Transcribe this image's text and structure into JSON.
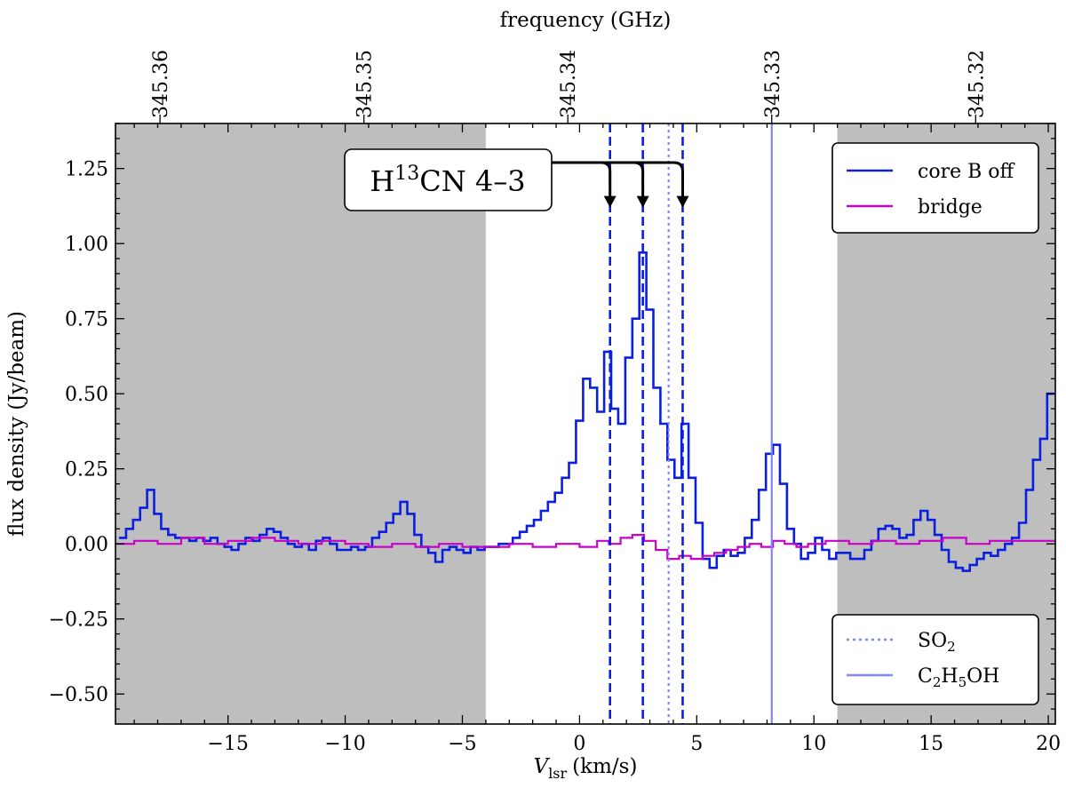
{
  "chart_data": {
    "type": "line",
    "step": true,
    "title": "",
    "xlabel": {
      "symbol": "V",
      "subscript": "lsr",
      "units": "(km/s)"
    },
    "ylabel": "flux density (Jy/beam)",
    "top_xlabel": "frequency (GHz)",
    "xlim": [
      -19.8,
      20.3
    ],
    "ylim": [
      -0.6,
      1.4
    ],
    "x_ticks": [
      -15,
      -10,
      -5,
      0,
      5,
      10,
      15,
      20
    ],
    "x_tick_labels": [
      "−15",
      "−10",
      "−5",
      "0",
      "5",
      "10",
      "15",
      "20"
    ],
    "y_ticks": [
      -0.5,
      -0.25,
      0.0,
      0.25,
      0.5,
      0.75,
      1.0,
      1.25
    ],
    "y_tick_labels": [
      "−0.50",
      "−0.25",
      "0.00",
      "0.25",
      "0.50",
      "0.75",
      "1.00",
      "1.25"
    ],
    "top_ticks": [
      {
        "label": "345.36",
        "v": -17.9
      },
      {
        "label": "345.35",
        "v": -9.2
      },
      {
        "label": "345.34",
        "v": -0.5
      },
      {
        "label": "345.33",
        "v": 8.2
      },
      {
        "label": "345.32",
        "v": 16.9
      }
    ],
    "shaded_regions": [
      [
        -19.8,
        -4.0
      ],
      [
        11.0,
        20.3
      ]
    ],
    "series": [
      {
        "name": "core B off",
        "color": "#0b1fe0",
        "x": [
          -19.5,
          -19.2,
          -18.9,
          -18.6,
          -18.3,
          -18.0,
          -17.7,
          -17.4,
          -17.1,
          -16.8,
          -16.5,
          -16.2,
          -15.9,
          -15.6,
          -15.3,
          -15.0,
          -14.7,
          -14.4,
          -14.1,
          -13.8,
          -13.5,
          -13.2,
          -12.9,
          -12.6,
          -12.3,
          -12.0,
          -11.7,
          -11.4,
          -11.1,
          -10.8,
          -10.5,
          -10.2,
          -9.9,
          -9.6,
          -9.3,
          -9.0,
          -8.7,
          -8.4,
          -8.1,
          -7.8,
          -7.5,
          -7.2,
          -6.9,
          -6.6,
          -6.3,
          -6.0,
          -5.7,
          -5.4,
          -5.1,
          -4.8,
          -4.5,
          -4.2,
          -3.9,
          -3.6,
          -3.3,
          -3.0,
          -2.7,
          -2.4,
          -2.1,
          -1.8,
          -1.5,
          -1.2,
          -0.9,
          -0.6,
          -0.3,
          0.0,
          0.3,
          0.6,
          0.9,
          1.2,
          1.5,
          1.8,
          2.1,
          2.4,
          2.7,
          3.0,
          3.3,
          3.6,
          3.9,
          4.2,
          4.5,
          4.8,
          5.1,
          5.4,
          5.7,
          6.0,
          6.3,
          6.6,
          6.9,
          7.2,
          7.5,
          7.8,
          8.1,
          8.4,
          8.7,
          9.0,
          9.3,
          9.6,
          9.9,
          10.2,
          10.5,
          10.8,
          11.1,
          11.4,
          11.7,
          12.0,
          12.3,
          12.6,
          12.9,
          13.2,
          13.5,
          13.8,
          14.1,
          14.4,
          14.7,
          15.0,
          15.3,
          15.6,
          15.9,
          16.2,
          16.5,
          16.8,
          17.1,
          17.4,
          17.7,
          18.0,
          18.3,
          18.6,
          18.9,
          19.2,
          19.5,
          19.8,
          20.1
        ],
        "values": [
          0.02,
          0.05,
          0.08,
          0.12,
          0.18,
          0.1,
          0.05,
          0.03,
          0.02,
          0.02,
          0.01,
          0.02,
          0.01,
          0.02,
          0.0,
          -0.01,
          -0.02,
          0.0,
          0.02,
          0.01,
          0.03,
          0.05,
          0.04,
          0.02,
          0.0,
          -0.01,
          0.0,
          -0.02,
          0.01,
          0.02,
          0.0,
          -0.02,
          -0.02,
          -0.01,
          -0.02,
          -0.01,
          0.02,
          0.04,
          0.07,
          0.1,
          0.14,
          0.1,
          0.03,
          -0.01,
          -0.03,
          -0.06,
          -0.02,
          -0.01,
          -0.02,
          -0.03,
          -0.01,
          -0.02,
          -0.01,
          -0.01,
          0.0,
          0.0,
          0.02,
          0.04,
          0.06,
          0.08,
          0.11,
          0.14,
          0.17,
          0.22,
          0.27,
          0.41,
          0.55,
          0.52,
          0.44,
          0.64,
          0.45,
          0.4,
          0.62,
          0.75,
          0.97,
          0.78,
          0.52,
          0.4,
          0.28,
          0.22,
          0.4,
          0.22,
          0.07,
          -0.05,
          -0.08,
          -0.04,
          -0.02,
          -0.04,
          -0.03,
          0.02,
          0.08,
          0.18,
          0.3,
          0.33,
          0.2,
          0.05,
          0.0,
          -0.05,
          -0.03,
          0.02,
          -0.02,
          -0.05,
          -0.03,
          -0.03,
          -0.05,
          -0.05,
          -0.02,
          0.01,
          0.05,
          0.06,
          0.05,
          0.02,
          0.03,
          0.08,
          0.11,
          0.08,
          0.03,
          -0.02,
          -0.06,
          -0.08,
          -0.09,
          -0.07,
          -0.05,
          -0.03,
          -0.04,
          -0.02,
          0.0,
          0.02,
          0.07,
          0.18,
          0.28,
          0.35,
          0.5
        ]
      },
      {
        "name": "bridge",
        "color": "#c800c8",
        "x": [
          -19.5,
          -18.5,
          -17.5,
          -16.5,
          -15.5,
          -14.5,
          -13.5,
          -12.5,
          -11.5,
          -10.5,
          -9.5,
          -8.5,
          -7.5,
          -6.5,
          -5.5,
          -4.5,
          -3.5,
          -2.5,
          -1.5,
          -0.5,
          0.5,
          1.0,
          1.5,
          2.0,
          2.5,
          3.0,
          3.5,
          4.0,
          4.5,
          5.0,
          5.5,
          6.0,
          6.5,
          7.0,
          7.5,
          8.0,
          8.5,
          9.0,
          9.5,
          10.0,
          11.0,
          12.0,
          13.0,
          14.0,
          15.0,
          16.0,
          17.0,
          18.0,
          19.0,
          20.1
        ],
        "values": [
          0.0,
          0.01,
          0.0,
          0.02,
          0.0,
          0.01,
          0.02,
          0.01,
          0.0,
          0.01,
          0.0,
          -0.01,
          0.0,
          -0.01,
          0.0,
          -0.01,
          -0.01,
          0.0,
          -0.01,
          0.0,
          -0.01,
          0.01,
          0.0,
          0.02,
          0.03,
          0.01,
          -0.02,
          -0.05,
          -0.04,
          -0.05,
          -0.04,
          -0.03,
          -0.02,
          -0.01,
          0.0,
          -0.01,
          0.01,
          0.0,
          -0.01,
          0.0,
          0.01,
          0.0,
          0.01,
          0.0,
          0.01,
          0.02,
          0.0,
          0.01,
          0.01,
          0.01
        ]
      }
    ],
    "vertical_lines": [
      {
        "name": "H13CN 4-3 hf 1",
        "x": 1.3,
        "style": "dashed",
        "color": "#0b1fe0"
      },
      {
        "name": "H13CN 4-3 hf 2",
        "x": 2.7,
        "style": "dashed",
        "color": "#0b1fe0"
      },
      {
        "name": "H13CN 4-3 hf 3",
        "x": 4.4,
        "style": "dashed",
        "color": "#0b1fe0"
      },
      {
        "name": "SO2",
        "x": 3.8,
        "style": "dotted",
        "color": "#7f86ff"
      },
      {
        "name": "C2H5OH",
        "x": 8.2,
        "style": "solid",
        "color": "#7f86ff"
      }
    ],
    "legend_top": {
      "position": "top-right",
      "entries": [
        {
          "label": "core B off",
          "color": "#0b1fe0",
          "style": "solid"
        },
        {
          "label": "bridge",
          "color": "#c800c8",
          "style": "solid"
        }
      ]
    },
    "legend_bottom": {
      "position": "bottom-right",
      "entries": [
        {
          "label_parts": [
            [
              "SO",
              ""
            ],
            [
              "2",
              "sub"
            ]
          ],
          "color": "#7f86ff",
          "style": "dotted"
        },
        {
          "label_parts": [
            [
              "C",
              ""
            ],
            [
              "2",
              "sub"
            ],
            [
              "H",
              ""
            ],
            [
              "5",
              "sub"
            ],
            [
              "OH",
              ""
            ]
          ],
          "color": "#7f86ff",
          "style": "solid"
        }
      ]
    },
    "annotation": {
      "label_parts": [
        [
          "H",
          ""
        ],
        [
          "13",
          "sup"
        ],
        [
          "CN 4–3",
          ""
        ]
      ],
      "y_bracket": 1.27,
      "y_arrow_tip": 1.12,
      "arrow_targets": [
        1.3,
        2.7,
        4.4
      ]
    }
  }
}
